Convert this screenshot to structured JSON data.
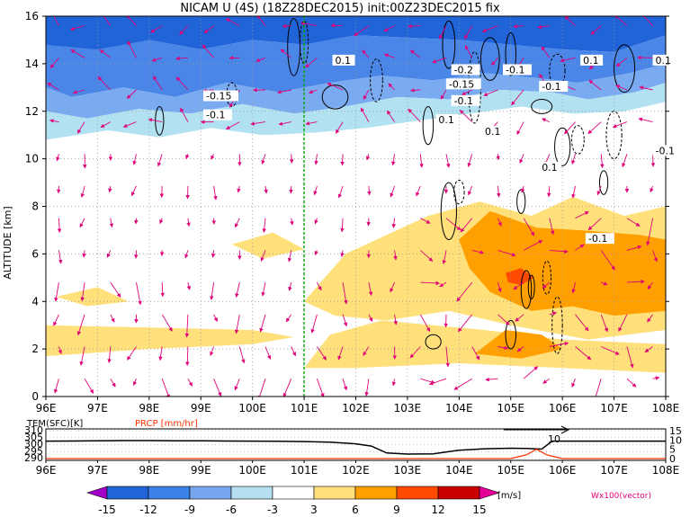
{
  "title": "NICAM U (4S) (18Z28DEC2015) init:00Z23DEC2015 fix",
  "chart_data": [
    {
      "type": "heatmap",
      "variable": "U wind",
      "ylabel": "ALTITUDE [km]",
      "xlim": [
        96,
        108
      ],
      "ylim": [
        0,
        16
      ],
      "x_ticks": [
        "96E",
        "97E",
        "98E",
        "99E",
        "100E",
        "101E",
        "102E",
        "103E",
        "104E",
        "105E",
        "106E",
        "107E",
        "108E"
      ],
      "y_ticks": [
        "0",
        "2",
        "4",
        "6",
        "8",
        "10",
        "12",
        "14",
        "16"
      ],
      "grid": true,
      "marker_line_lon": 101,
      "marker_line_color": "#00aa00",
      "vector_color": "#e0007a",
      "vector_label": "Wx100(vector)",
      "contour_labels": [
        "-0.15",
        "-0.1",
        "0.1",
        "-0.2",
        "-0.15",
        "-0.1",
        "0.1",
        "-0.1",
        "-0.1",
        "0.1",
        "0.1",
        "0.1",
        "0.1",
        "-0.1",
        "-0.1"
      ],
      "shaded_regions": [
        {
          "level": -15,
          "description": "top band",
          "x": [
            96,
            108
          ],
          "y": [
            15,
            16
          ]
        },
        {
          "level": -12,
          "x": [
            96,
            108
          ],
          "y": [
            13.6,
            15.2
          ]
        },
        {
          "level": -9,
          "x": [
            96,
            108
          ],
          "y": [
            12.6,
            14.2
          ]
        },
        {
          "level": -6,
          "x": [
            96,
            107.5
          ],
          "y": [
            11.8,
            13.2
          ]
        },
        {
          "level": -3,
          "x": [
            96,
            106.5
          ],
          "y": [
            10.8,
            12.4
          ]
        },
        {
          "level": 3,
          "x": [
            96,
            108
          ],
          "y": [
            0.5,
            8
          ]
        },
        {
          "level": 6,
          "x": [
            103.5,
            108
          ],
          "y": [
            1.5,
            7.5
          ]
        },
        {
          "level": 9,
          "x": [
            104.9,
            105.4
          ],
          "y": [
            4.8,
            5.2
          ]
        }
      ]
    },
    {
      "type": "line",
      "legend": [
        "TEM(SFC)[K]",
        "PRCP [mm/hr]"
      ],
      "left_axis_ticks": [
        "310",
        "305",
        "300",
        "295",
        "290"
      ],
      "right_axis_ticks": [
        "15",
        "10",
        "5",
        "0"
      ],
      "x_ticks": [
        "96E",
        "97E",
        "98E",
        "99E",
        "100E",
        "101E",
        "102E",
        "103E",
        "104E",
        "105E",
        "106E",
        "107E",
        "108E"
      ],
      "arrow_annotation": "10",
      "series": [
        {
          "name": "TEM(SFC)[K]",
          "color": "#000000",
          "x": [
            96,
            96.5,
            97,
            97.5,
            98,
            98.5,
            99,
            99.5,
            100,
            100.5,
            101,
            101.5,
            102,
            102.3,
            102.6,
            103,
            103.5,
            104,
            104.5,
            105,
            105.3,
            105.6,
            105.8,
            106,
            106.5,
            107,
            107.5,
            108
          ],
          "y": [
            302.5,
            302.6,
            302.8,
            302.9,
            302.9,
            302.8,
            302.7,
            302.6,
            302.5,
            302.4,
            302.2,
            301.8,
            300.6,
            299.0,
            294.0,
            293.2,
            293.4,
            296.0,
            297.0,
            297.4,
            297.2,
            296.8,
            302.5,
            302.5,
            302.5,
            302.5,
            302.5,
            302.5
          ]
        },
        {
          "name": "PRCP [mm/hr]",
          "color": "#ff3300",
          "x": [
            96,
            100,
            104,
            105,
            105.3,
            105.5,
            105.7,
            106,
            108
          ],
          "y": [
            0,
            0,
            0,
            0,
            2,
            5,
            2,
            0,
            0
          ]
        }
      ]
    }
  ],
  "colorbar": {
    "labels": [
      "-15",
      "-12",
      "-9",
      "-6",
      "-3",
      "3",
      "6",
      "9",
      "12",
      "15"
    ],
    "unit": "[m/s]",
    "colors": [
      "#a000c8",
      "#2064d8",
      "#3c82e6",
      "#78a6ee",
      "#b4e0f0",
      "#ffffff",
      "#ffe07a",
      "#ffa000",
      "#ff4a00",
      "#c80000",
      "#e6009a"
    ]
  },
  "colors": {
    "c_m15": "#a000c8",
    "c_m12": "#2064d8",
    "c_m9": "#4a86e8",
    "c_m6": "#7aaaf0",
    "c_m3": "#b2e2f2",
    "c_p3": "#ffe07a",
    "c_p6": "#ffa000",
    "c_p9": "#ff4a00",
    "c_p12": "#c80000",
    "vector": "#e0007a",
    "green": "#00aa00",
    "prcp": "#ff3300"
  }
}
